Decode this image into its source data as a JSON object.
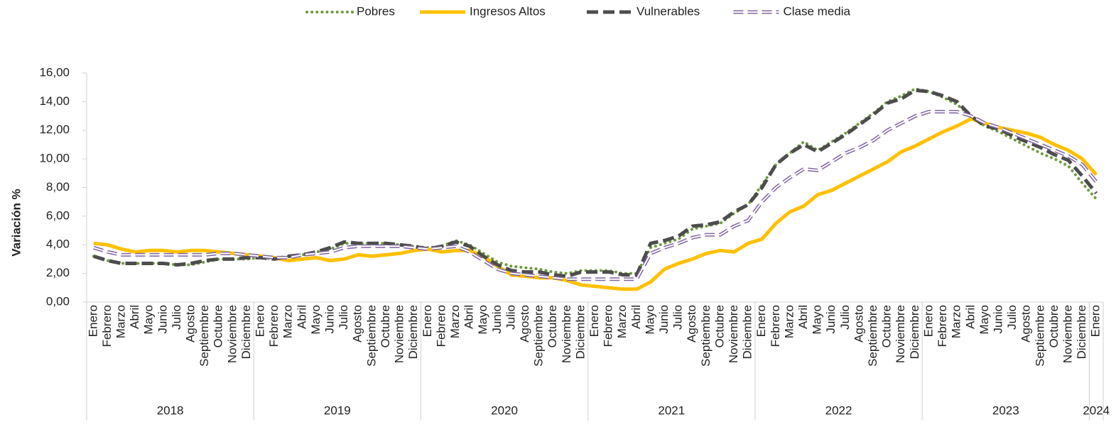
{
  "chart_data": {
    "type": "line",
    "y_label": "Variación  %",
    "legend": "top",
    "grid": false,
    "categories": [
      "Enero",
      "Febrero",
      "Marzo",
      "Abril",
      "Mayo",
      "Junio",
      "Julio",
      "Agosto",
      "Septiembre",
      "Octubre",
      "Noviembre",
      "Diciembre",
      "Enero",
      "Febrero",
      "Marzo",
      "Abril",
      "Mayo",
      "Junio",
      "Julio",
      "Agosto",
      "Septiembre",
      "Octubre",
      "Noviembre",
      "Diciembre",
      "Enero",
      "Febrero",
      "Marzo",
      "Abril",
      "Mayo",
      "Junio",
      "Julio",
      "Agosto",
      "Septiembre",
      "Octubre",
      "Noviembre",
      "Diciembre",
      "Enero",
      "Febrero",
      "Marzo",
      "Abril",
      "Mayo",
      "Junio",
      "Julio",
      "Agosto",
      "Septiembre",
      "Octubre",
      "Noviembre",
      "Diciembre",
      "Enero",
      "Febrero",
      "Marzo",
      "Abril",
      "Mayo",
      "Junio",
      "Julio",
      "Agosto",
      "Septiembre",
      "Octubre",
      "Noviembre",
      "Diciembre",
      "Enero",
      "Febrero",
      "Marzo",
      "Abril",
      "Mayo",
      "Junio",
      "Julio",
      "Agosto",
      "Septiembre",
      "Octubre",
      "Noviembre",
      "Diciembre",
      "Enero"
    ],
    "years": [
      "2018",
      "2019",
      "2020",
      "2021",
      "2022",
      "2023",
      "2024"
    ],
    "ylim": [
      0,
      16
    ],
    "yticks": [
      {
        "value": 0,
        "label": "0,00"
      },
      {
        "value": 2,
        "label": "2,00"
      },
      {
        "value": 4,
        "label": "4,00"
      },
      {
        "value": 6,
        "label": "6,00"
      },
      {
        "value": 8,
        "label": "8,00"
      },
      {
        "value": 10,
        "label": "10,00"
      },
      {
        "value": 12,
        "label": "12,00"
      },
      {
        "value": 14,
        "label": "14,00"
      },
      {
        "value": 16,
        "label": "16,00"
      }
    ],
    "series": [
      {
        "name": "Pobres",
        "color": "#6f9b3c",
        "style": "dotted",
        "values": [
          3.2,
          2.9,
          2.7,
          2.7,
          2.7,
          2.7,
          2.6,
          2.6,
          2.8,
          3.0,
          3.0,
          3.0,
          3.1,
          3.0,
          3.2,
          3.3,
          3.5,
          3.7,
          4.1,
          4.1,
          4.1,
          4.1,
          4.0,
          3.9,
          3.8,
          3.9,
          4.3,
          4.0,
          3.4,
          2.8,
          2.5,
          2.4,
          2.3,
          2.1,
          2.0,
          2.2,
          2.2,
          2.2,
          2.0,
          2.0,
          3.8,
          4.1,
          4.4,
          5.1,
          5.3,
          5.5,
          6.2,
          6.8,
          8.2,
          9.6,
          10.4,
          11.2,
          10.6,
          11.2,
          11.8,
          12.5,
          13.2,
          14.0,
          14.4,
          14.9,
          14.7,
          14.3,
          13.8,
          13.0,
          12.3,
          11.9,
          11.4,
          10.9,
          10.4,
          10.0,
          9.5,
          8.3,
          7.2
        ]
      },
      {
        "name": "Ingresos Altos",
        "color": "#ffc000",
        "style": "solid",
        "values": [
          4.1,
          4.0,
          3.7,
          3.5,
          3.6,
          3.6,
          3.5,
          3.6,
          3.6,
          3.5,
          3.4,
          3.3,
          3.2,
          3.1,
          2.9,
          3.0,
          3.1,
          2.9,
          3.0,
          3.3,
          3.2,
          3.3,
          3.4,
          3.6,
          3.7,
          3.5,
          3.6,
          3.6,
          3.2,
          2.5,
          1.9,
          1.8,
          1.7,
          1.7,
          1.5,
          1.2,
          1.1,
          1.0,
          0.9,
          0.9,
          1.4,
          2.3,
          2.7,
          3.0,
          3.4,
          3.6,
          3.5,
          4.1,
          4.4,
          5.5,
          6.3,
          6.7,
          7.5,
          7.8,
          8.3,
          8.8,
          9.3,
          9.8,
          10.5,
          10.9,
          11.4,
          11.9,
          12.3,
          12.8,
          12.5,
          12.2,
          12.0,
          11.8,
          11.5,
          11.0,
          10.6,
          10.0,
          8.9
        ]
      },
      {
        "name": "Vulnerables",
        "color": "#4d4d4d",
        "style": "dashed",
        "values": [
          3.2,
          2.9,
          2.7,
          2.7,
          2.7,
          2.7,
          2.6,
          2.7,
          2.9,
          3.0,
          3.0,
          3.1,
          3.1,
          3.0,
          3.2,
          3.3,
          3.5,
          3.8,
          4.2,
          4.1,
          4.1,
          4.1,
          4.0,
          3.9,
          3.7,
          3.9,
          4.2,
          3.9,
          3.2,
          2.6,
          2.2,
          2.1,
          2.1,
          1.9,
          1.8,
          2.1,
          2.1,
          2.1,
          1.9,
          1.9,
          4.1,
          4.3,
          4.6,
          5.3,
          5.4,
          5.6,
          6.3,
          6.8,
          8.0,
          9.6,
          10.4,
          11.0,
          10.5,
          11.1,
          11.7,
          12.4,
          13.1,
          13.9,
          14.2,
          14.8,
          14.7,
          14.4,
          14.0,
          13.0,
          12.3,
          12.1,
          11.6,
          11.2,
          10.8,
          10.3,
          9.9,
          8.8,
          7.6
        ]
      },
      {
        "name": "Clase media",
        "color": "#8064a2",
        "style": "double",
        "values": [
          3.8,
          3.5,
          3.3,
          3.3,
          3.3,
          3.3,
          3.3,
          3.3,
          3.3,
          3.4,
          3.4,
          3.3,
          3.2,
          3.1,
          3.1,
          3.3,
          3.4,
          3.5,
          3.8,
          3.9,
          3.9,
          3.9,
          3.9,
          3.8,
          3.7,
          3.8,
          3.9,
          3.5,
          2.9,
          2.3,
          2.0,
          1.9,
          1.8,
          1.7,
          1.6,
          1.6,
          1.6,
          1.6,
          1.6,
          1.6,
          3.4,
          3.8,
          4.1,
          4.5,
          4.7,
          4.7,
          5.3,
          5.7,
          7.0,
          8.0,
          8.7,
          9.3,
          9.2,
          9.8,
          10.4,
          10.8,
          11.3,
          12.0,
          12.5,
          13.0,
          13.3,
          13.3,
          13.3,
          13.0,
          12.5,
          12.2,
          11.8,
          11.4,
          11.0,
          10.6,
          10.2,
          9.6,
          8.4
        ]
      }
    ]
  }
}
